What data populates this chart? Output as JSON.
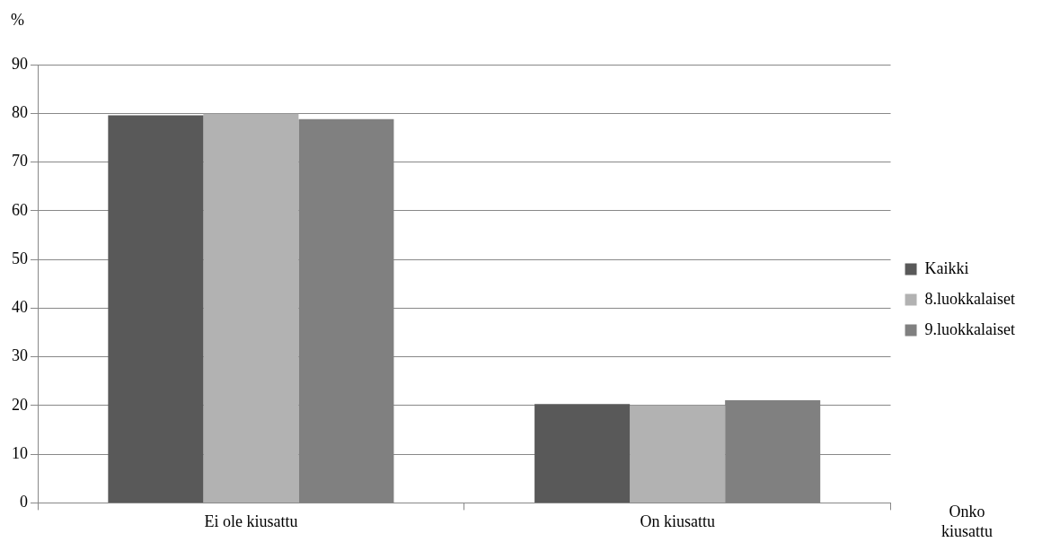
{
  "chart_data": {
    "type": "bar",
    "xlabel": "Onko kiusattu",
    "ylabel": "%",
    "categories": [
      "Ei ole kiusattu",
      "On kiusattu"
    ],
    "series": [
      {
        "name": "Kaikki",
        "color": "#595959",
        "values": [
          79.6,
          20.3
        ]
      },
      {
        "name": "8.luokkalaiset",
        "color": "#b2b2b2",
        "values": [
          79.9,
          20.0
        ]
      },
      {
        "name": "9.luokkalaiset",
        "color": "#808080",
        "values": [
          78.8,
          21.1
        ]
      }
    ],
    "ylim": [
      0,
      90
    ],
    "yticks": [
      0,
      10,
      20,
      30,
      40,
      50,
      60,
      70,
      80,
      90
    ],
    "grid": "y",
    "legend": "right"
  }
}
